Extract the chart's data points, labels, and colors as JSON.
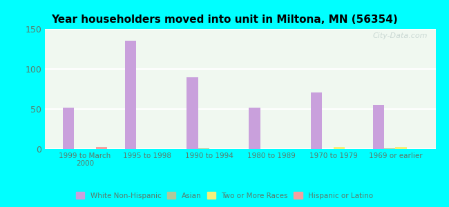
{
  "title": "Year householders moved into unit in Miltona, MN (56354)",
  "categories": [
    "1999 to March\n2000",
    "1995 to 1998",
    "1990 to 1994",
    "1980 to 1989",
    "1970 to 1979",
    "1969 or earlier"
  ],
  "series": {
    "White Non-Hispanic": [
      52,
      135,
      90,
      52,
      71,
      55
    ],
    "Asian": [
      0,
      0,
      1,
      0,
      0,
      1
    ],
    "Two or More Races": [
      0,
      0,
      0,
      0,
      3,
      3
    ],
    "Hispanic or Latino": [
      3,
      0,
      0,
      0,
      0,
      0
    ]
  },
  "colors": {
    "White Non-Hispanic": "#c9a0dc",
    "Asian": "#b0c89a",
    "Two or More Races": "#f5f07a",
    "Hispanic or Latino": "#f5a0a0"
  },
  "ylim": [
    0,
    150
  ],
  "yticks": [
    0,
    50,
    100,
    150
  ],
  "bar_width": 0.18,
  "background_outer": "#00ffff",
  "background_inner_top": "#f0f8f0",
  "background_inner_bottom": "#e8f5e0",
  "grid_color": "#ffffff",
  "watermark": "City-Data.com"
}
